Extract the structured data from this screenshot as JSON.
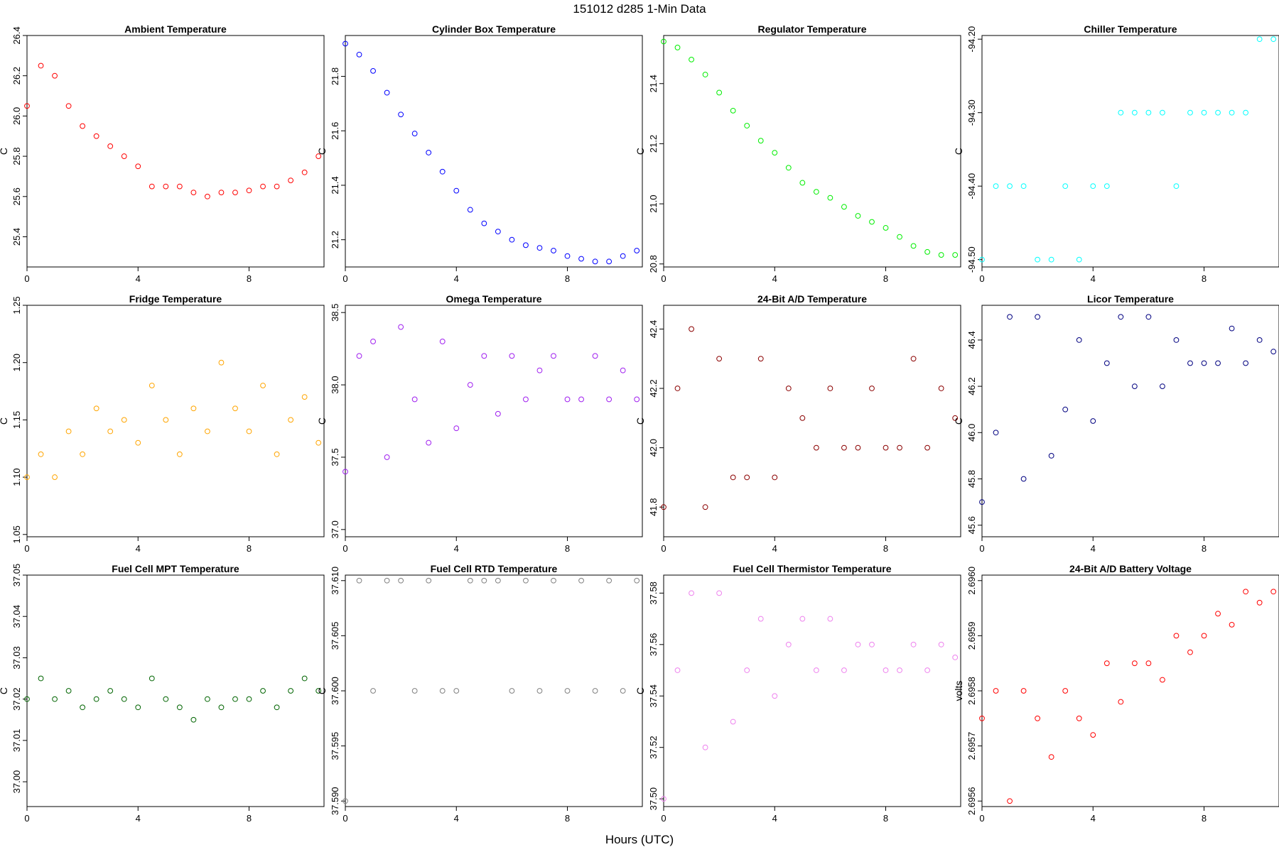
{
  "page": {
    "title": "151012   d285   1-Min Data",
    "xlabel": "Hours (UTC)"
  },
  "chart_data": [
    {
      "type": "scatter",
      "title": "Ambient Temperature",
      "ylabel": "C",
      "xlabel": "",
      "color": "#ff0000",
      "xlim": [
        0,
        10.7
      ],
      "ylim": [
        25.25,
        26.4
      ],
      "xticks": [
        0,
        4,
        8
      ],
      "yticks": [
        25.4,
        25.6,
        25.8,
        26.0,
        26.2,
        26.4
      ],
      "ytick_labels": [
        "25.4",
        "25.6",
        "25.8",
        "26.0",
        "26.2",
        "26.4"
      ],
      "series": [
        {
          "name": "Ambient Temperature",
          "x": [
            0,
            0.5,
            1,
            1.5,
            2,
            2.5,
            3,
            3.5,
            4,
            4.5,
            5,
            5.5,
            6,
            6.5,
            7,
            7.5,
            8,
            8.5,
            9,
            9.5,
            10,
            10.5
          ],
          "y": [
            26.05,
            26.25,
            26.2,
            26.05,
            25.95,
            25.9,
            25.85,
            25.8,
            25.75,
            25.65,
            25.65,
            25.65,
            25.62,
            25.6,
            25.62,
            25.62,
            25.63,
            25.65,
            25.65,
            25.68,
            25.72,
            25.8
          ]
        }
      ]
    },
    {
      "type": "scatter",
      "title": "Cylinder Box Temperature",
      "ylabel": "C",
      "xlabel": "",
      "color": "#0000ff",
      "xlim": [
        0,
        10.7
      ],
      "ylim": [
        21.1,
        21.95
      ],
      "xticks": [
        0,
        4,
        8
      ],
      "yticks": [
        21.2,
        21.4,
        21.6,
        21.8
      ],
      "ytick_labels": [
        "21.2",
        "21.4",
        "21.6",
        "21.8"
      ],
      "series": [
        {
          "name": "Cylinder Box Temperature",
          "x": [
            0,
            0.5,
            1,
            1.5,
            2,
            2.5,
            3,
            3.5,
            4,
            4.5,
            5,
            5.5,
            6,
            6.5,
            7,
            7.5,
            8,
            8.5,
            9,
            9.5,
            10,
            10.5
          ],
          "y": [
            21.92,
            21.88,
            21.82,
            21.74,
            21.66,
            21.59,
            21.52,
            21.45,
            21.38,
            21.31,
            21.26,
            21.23,
            21.2,
            21.18,
            21.17,
            21.16,
            21.14,
            21.13,
            21.12,
            21.12,
            21.14,
            21.16
          ]
        }
      ]
    },
    {
      "type": "scatter",
      "title": "Regulator Temperature",
      "ylabel": "C",
      "xlabel": "",
      "color": "#00ee00",
      "xlim": [
        0,
        10.7
      ],
      "ylim": [
        20.79,
        21.56
      ],
      "xticks": [
        0,
        4,
        8
      ],
      "yticks": [
        20.8,
        21.0,
        21.2,
        21.4
      ],
      "ytick_labels": [
        "20.8",
        "21.0",
        "21.2",
        "21.4"
      ],
      "series": [
        {
          "name": "Regulator Temperature",
          "x": [
            0,
            0.5,
            1,
            1.5,
            2,
            2.5,
            3,
            3.5,
            4,
            4.5,
            5,
            5.5,
            6,
            6.5,
            7,
            7.5,
            8,
            8.5,
            9,
            9.5,
            10,
            10.5
          ],
          "y": [
            21.54,
            21.52,
            21.48,
            21.43,
            21.37,
            21.31,
            21.26,
            21.21,
            21.17,
            21.12,
            21.07,
            21.04,
            21.02,
            20.99,
            20.96,
            20.94,
            20.92,
            20.89,
            20.86,
            20.84,
            20.83,
            20.83
          ]
        }
      ]
    },
    {
      "type": "scatter",
      "title": "Chiller Temperature",
      "ylabel": "C",
      "xlabel": "",
      "color": "#00ffff",
      "xlim": [
        0,
        10.7
      ],
      "ylim": [
        -94.51,
        -94.195
      ],
      "xticks": [
        0,
        4,
        8
      ],
      "yticks": [
        -94.5,
        -94.4,
        -94.3,
        -94.2
      ],
      "ytick_labels": [
        "-94.50",
        "-94.40",
        "-94.30",
        "-94.20"
      ],
      "series": [
        {
          "name": "Chiller Temperature",
          "x": [
            0,
            0.5,
            1,
            1.5,
            2,
            2.5,
            3,
            3.5,
            4,
            4.5,
            5,
            5.5,
            6,
            6.5,
            7,
            7.5,
            8,
            8.5,
            9,
            9.5,
            10,
            10.5
          ],
          "y": [
            -94.5,
            -94.4,
            -94.4,
            -94.4,
            -94.5,
            -94.5,
            -94.4,
            -94.5,
            -94.4,
            -94.4,
            -94.3,
            -94.3,
            -94.3,
            -94.3,
            -94.4,
            -94.3,
            -94.3,
            -94.3,
            -94.3,
            -94.3,
            -94.2,
            -94.2
          ]
        }
      ]
    },
    {
      "type": "scatter",
      "title": "Fridge Temperature",
      "ylabel": "C",
      "xlabel": "",
      "color": "#ffa500",
      "xlim": [
        0,
        10.7
      ],
      "ylim": [
        1.048,
        1.25
      ],
      "xticks": [
        0,
        4,
        8
      ],
      "yticks": [
        1.05,
        1.1,
        1.15,
        1.2,
        1.25
      ],
      "ytick_labels": [
        "1.05",
        "1.10",
        "1.15",
        "1.20",
        "1.25"
      ],
      "series": [
        {
          "name": "Fridge Temperature",
          "x": [
            0,
            0.5,
            1,
            1.5,
            2,
            2.5,
            3,
            3.5,
            4,
            4.5,
            5,
            5.5,
            6,
            6.5,
            7,
            7.5,
            8,
            8.5,
            9,
            9.5,
            10,
            10.5
          ],
          "y": [
            1.1,
            1.12,
            1.1,
            1.14,
            1.12,
            1.16,
            1.14,
            1.15,
            1.13,
            1.18,
            1.15,
            1.12,
            1.16,
            1.14,
            1.2,
            1.16,
            1.14,
            1.18,
            1.12,
            1.15,
            1.17,
            1.13
          ]
        }
      ]
    },
    {
      "type": "scatter",
      "title": "Omega Temperature",
      "ylabel": "C",
      "xlabel": "",
      "color": "#a020f0",
      "xlim": [
        0,
        10.7
      ],
      "ylim": [
        36.95,
        38.55
      ],
      "xticks": [
        0,
        4,
        8
      ],
      "yticks": [
        37.0,
        37.5,
        38.0,
        38.5
      ],
      "ytick_labels": [
        "37.0",
        "37.5",
        "38.0",
        "38.5"
      ],
      "series": [
        {
          "name": "Omega Temperature",
          "x": [
            0,
            0.5,
            1,
            1.5,
            2,
            2.5,
            3,
            3.5,
            4,
            4.5,
            5,
            5.5,
            6,
            6.5,
            7,
            7.5,
            8,
            8.5,
            9,
            9.5,
            10,
            10.5
          ],
          "y": [
            37.4,
            38.2,
            38.3,
            37.5,
            38.4,
            37.9,
            37.6,
            38.3,
            37.7,
            38.0,
            38.2,
            37.8,
            38.2,
            37.9,
            38.1,
            38.2,
            37.9,
            37.9,
            38.2,
            37.9,
            38.1,
            37.9
          ]
        }
      ]
    },
    {
      "type": "scatter",
      "title": "24-Bit A/D Temperature",
      "ylabel": "C",
      "xlabel": "",
      "color": "#8b0000",
      "xlim": [
        0,
        10.7
      ],
      "ylim": [
        41.7,
        42.48
      ],
      "xticks": [
        0,
        4,
        8
      ],
      "yticks": [
        41.8,
        42.0,
        42.2,
        42.4
      ],
      "ytick_labels": [
        "41.8",
        "42.0",
        "42.2",
        "42.4"
      ],
      "series": [
        {
          "name": "24-Bit A/D Temperature",
          "x": [
            0,
            0.5,
            1,
            1.5,
            2,
            2.5,
            3,
            3.5,
            4,
            4.5,
            5,
            5.5,
            6,
            6.5,
            7,
            7.5,
            8,
            8.5,
            9,
            9.5,
            10,
            10.5
          ],
          "y": [
            41.8,
            42.2,
            42.4,
            41.8,
            42.3,
            41.9,
            41.9,
            42.3,
            41.9,
            42.2,
            42.1,
            42.0,
            42.2,
            42.0,
            42.0,
            42.2,
            42.0,
            42.0,
            42.3,
            42.0,
            42.2,
            42.1
          ]
        }
      ]
    },
    {
      "type": "scatter",
      "title": "Licor Temperature",
      "ylabel": "C",
      "xlabel": "",
      "color": "#000080",
      "xlim": [
        0,
        10.7
      ],
      "ylim": [
        45.55,
        46.55
      ],
      "xticks": [
        0,
        4,
        8
      ],
      "yticks": [
        45.6,
        45.8,
        46.0,
        46.2,
        46.4
      ],
      "ytick_labels": [
        "45.6",
        "45.8",
        "46.0",
        "46.2",
        "46.4"
      ],
      "series": [
        {
          "name": "Licor Temperature",
          "x": [
            0,
            0.5,
            1,
            1.5,
            2,
            2.5,
            3,
            3.5,
            4,
            4.5,
            5,
            5.5,
            6,
            6.5,
            7,
            7.5,
            8,
            8.5,
            9,
            9.5,
            10,
            10.5
          ],
          "y": [
            45.7,
            46.0,
            46.5,
            45.8,
            46.5,
            45.9,
            46.1,
            46.4,
            46.05,
            46.3,
            46.5,
            46.2,
            46.5,
            46.2,
            46.4,
            46.3,
            46.3,
            46.3,
            46.45,
            46.3,
            46.4,
            46.35
          ]
        }
      ]
    },
    {
      "type": "scatter",
      "title": "Fuel Cell MPT Temperature",
      "ylabel": "C",
      "xlabel": "",
      "color": "#006400",
      "xlim": [
        0,
        10.7
      ],
      "ylim": [
        36.994,
        37.05
      ],
      "xticks": [
        0,
        4,
        8
      ],
      "yticks": [
        37.0,
        37.01,
        37.02,
        37.03,
        37.04,
        37.05
      ],
      "ytick_labels": [
        "37.00",
        "37.01",
        "37.02",
        "37.03",
        "37.04",
        "37.05"
      ],
      "series": [
        {
          "name": "Fuel Cell MPT Temperature",
          "x": [
            0,
            0.5,
            1,
            1.5,
            2,
            2.5,
            3,
            3.5,
            4,
            4.5,
            5,
            5.5,
            6,
            6.5,
            7,
            7.5,
            8,
            8.5,
            9,
            9.5,
            10,
            10.5
          ],
          "y": [
            37.02,
            37.025,
            37.02,
            37.022,
            37.018,
            37.02,
            37.022,
            37.02,
            37.018,
            37.025,
            37.02,
            37.018,
            37.015,
            37.02,
            37.018,
            37.02,
            37.02,
            37.022,
            37.018,
            37.022,
            37.025,
            37.022
          ]
        }
      ]
    },
    {
      "type": "scatter",
      "title": "Fuel Cell RTD Temperature",
      "ylabel": "C",
      "xlabel": "",
      "color": "#808080",
      "xlim": [
        0,
        10.7
      ],
      "ylim": [
        37.5895,
        37.6105
      ],
      "xticks": [
        0,
        4,
        8
      ],
      "yticks": [
        37.59,
        37.595,
        37.6,
        37.605,
        37.61
      ],
      "ytick_labels": [
        "37.590",
        "37.595",
        "37.600",
        "37.605",
        "37.610"
      ],
      "series": [
        {
          "name": "Fuel Cell RTD Temperature",
          "x": [
            0,
            0.5,
            1,
            1.5,
            2,
            2.5,
            3,
            3.5,
            4,
            4.5,
            5,
            5.5,
            6,
            6.5,
            7,
            7.5,
            8,
            8.5,
            9,
            9.5,
            10,
            10.5
          ],
          "y": [
            37.59,
            37.61,
            37.6,
            37.61,
            37.61,
            37.6,
            37.61,
            37.6,
            37.6,
            37.61,
            37.61,
            37.61,
            37.6,
            37.61,
            37.6,
            37.61,
            37.6,
            37.61,
            37.6,
            37.61,
            37.6,
            37.61
          ]
        }
      ]
    },
    {
      "type": "scatter",
      "title": "Fuel Cell Thermistor Temperature",
      "ylabel": "C",
      "xlabel": "",
      "color": "#ee82ee",
      "xlim": [
        0,
        10.7
      ],
      "ylim": [
        37.497,
        37.587
      ],
      "xticks": [
        0,
        4,
        8
      ],
      "yticks": [
        37.5,
        37.52,
        37.54,
        37.56,
        37.58
      ],
      "ytick_labels": [
        "37.50",
        "37.52",
        "37.54",
        "37.56",
        "37.58"
      ],
      "series": [
        {
          "name": "Fuel Cell Thermistor Temperature",
          "x": [
            0,
            0.5,
            1,
            1.5,
            2,
            2.5,
            3,
            3.5,
            4,
            4.5,
            5,
            5.5,
            6,
            6.5,
            7,
            7.5,
            8,
            8.5,
            9,
            9.5,
            10,
            10.5
          ],
          "y": [
            37.5,
            37.55,
            37.58,
            37.52,
            37.58,
            37.53,
            37.55,
            37.57,
            37.54,
            37.56,
            37.57,
            37.55,
            37.57,
            37.55,
            37.56,
            37.56,
            37.55,
            37.55,
            37.56,
            37.55,
            37.56,
            37.555
          ]
        }
      ]
    },
    {
      "type": "scatter",
      "title": "24-Bit A/D Battery Voltage",
      "ylabel": "volts",
      "xlabel": "",
      "color": "#ff0000",
      "xlim": [
        0,
        10.7
      ],
      "ylim": [
        2.69559,
        2.69601
      ],
      "xticks": [
        0,
        4,
        8
      ],
      "yticks": [
        2.6956,
        2.6957,
        2.6958,
        2.6959,
        2.696
      ],
      "ytick_labels": [
        "2.6956",
        "2.6957",
        "2.6958",
        "2.6959",
        "2.6960"
      ],
      "series": [
        {
          "name": "24-Bit A/D Battery Voltage",
          "x": [
            0,
            0.5,
            1,
            1.5,
            2,
            2.5,
            3,
            3.5,
            4,
            4.5,
            5,
            5.5,
            6,
            6.5,
            7,
            7.5,
            8,
            8.5,
            9,
            9.5,
            10,
            10.5
          ],
          "y": [
            2.69575,
            2.6958,
            2.6956,
            2.6958,
            2.69575,
            2.69568,
            2.6958,
            2.69575,
            2.69572,
            2.69585,
            2.69578,
            2.69585,
            2.69585,
            2.69582,
            2.6959,
            2.69587,
            2.6959,
            2.69594,
            2.69592,
            2.69598,
            2.69596,
            2.69598
          ]
        }
      ]
    }
  ]
}
